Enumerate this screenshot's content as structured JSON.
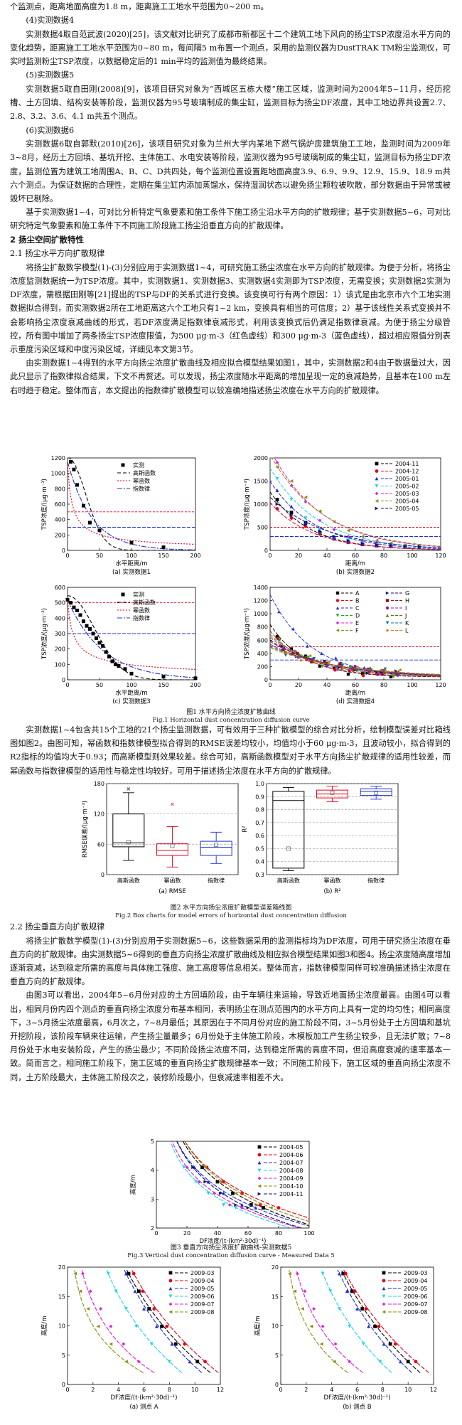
{
  "text": {
    "p0": "个监测点，距离地面高度为1.8 m，距离施工工地水平范围为0~200 m。",
    "h4": "(4)实测数据4",
    "p4": "实测数据4取自范武波(2020)[25]，该文献对比研究了成都市新都区十二个建筑工地下风向的扬尘TSP浓度沿水平方向的变化趋势，距离施工工地水平范围为0~80 m，每间隔5 m布置一个测点，采用的监测仪器为DustTRAK TM粉尘监测仪，可实时监测粉尘TSP浓度，以数据稳定后的1 min平均的监测值为最终结果。",
    "h5": "(5)实测数据5",
    "p5": "实测数据5取自田刚(2008)[9]，该项目研究对象为“西城区五栋大楼”施工区域，监测时间为2004年5~11月，经历挖槽、土方回填、结构安装等阶段，监测仪器为95号玻璃制成的集尘缸，监测目标为扬尘DF浓度，其中工地边界共设置2.7、2.8、3.2、3.6、4.1 m共五个测点。",
    "h6": "(6)实测数据6",
    "p6": "实测数据6取自郭默(2010)[26]，该项目研究对象为兰州大学内某地下燃气锅炉房建筑施工工地，监测时间为2009年3~8月，经历土方回填、基坑开挖、主体施工、水电安装等阶段，监测仪器为95号玻璃制成的集尘缸，监测目标为扬尘DF浓度，监测位置为建筑工地周围A、B、C、D共四处，每个监测位置设置距地面高度3.9、6.9、9.9、12.9、15.9、18.9 m共六个测点。为保证数据的合理性，定期在集尘缸内添加蒸馏水，保持湿润状态以避免扬尘颗粒被吹散，部分数据由于异常或被毁坏已剔除。",
    "p7": "基于实测数据1~4，可对比分析特定气象要素和施工条件下施工扬尘沿水平方向的扩散规律；基于实测数据5~6，可对比研究特定气象要素和施工条件下不同施工阶段施工扬尘沿垂直方向的扩散规律。",
    "s2": "2  扬尘空间扩散特性",
    "s21": "2.1  扬尘水平方向扩散规律",
    "p8": "将扬尘扩散数学模型(1)-(3)分别应用于实测数据1~4，可研究施工扬尘浓度在水平方向的扩散规律。为便于分析，将扬尘浓度监测数据统一为TSP浓度。其中，实测数据1、实测数据3、实测数据4实测即为TSP浓度，无需变换；实测数据2实测为DF浓度，需根据田刚等[21]提出的TSP与DF的关系式进行变换。该变换可行有两个原因：1）该式是由北京市六个工地实测数据拟合得到，而实测数据2所在工地距离这六个工地只有1~2 km，变换具有相当的可信度；2）基于该线性关系式变换并不会影响扬尘浓度衰减曲线的形式，若DF浓度满足指数律衰减形式，利用该变换式后仍满足指数律衰减。为便于扬尘分级管控，所有图中增加了两条扬尘TSP浓度限值，为500 μg·m-3（红色虚线）和300 μg·m-3（蓝色虚线），超过相应限值分别表示重度污染区域和中度污染区域，详细见本文第3节。",
    "p9": "由实测数据1~4得到的水平方向扬尘浓度扩散曲线及相应拟合模型结果如图1，其中，实测数据2和4由于数据量过大，因此只显示了指数律拟合结果，下文不再赘述。可以发现，扬尘浓度随水平距离的增加呈现一定的衰减趋势，且基本在100 m左右时趋于稳定。整体而言，本文提出的指数律扩散模型可以较准确地描述扬尘浓度在水平方向的扩散规律。",
    "p10": "实测数据1~4包含共15个工地的21个扬尘监测数据，可有效用于三种扩散模型的综合对比分析，绘制模型误差对比箱线图如图2。由图可知，幂函数和指数律模型拟合得到的RMSE误差均较小，均值均小于60 μg·m-3，且波动较小，拟合得到的R2指标的均值均大于0.93；而高斯模型则效果较差。综合可知，高斯函数模型对于水平方向扬尘扩散规律的适用性较差，而幂函数与指数律模型的适用性与稳定性均较好，可用于描述扬尘浓度在水平方向的扩散规律。",
    "s22": "2.2  扬尘垂直方向扩散规律",
    "p11": "将扬尘扩散数学模型(1)-(3)分别应用于实测数据5~6，这些数据采用的监测指标均为DF浓度，可用于研究扬尘浓度在垂直方向的扩散规律。由实测数据5~6得到的垂直方向扬尘浓度扩散曲线及相应拟合模型结果如图3和图4。扬尘浓度随高度增加逐渐衰减，达到稳定所需的高度与具体施工强度、施工高度等信息相关。整体而言，指数律模型同样可较准确描述扬尘浓度在垂直方向的扩散规律。",
    "p12": "由图3可以看出，2004年5~6月份对应的土方回填阶段，由于车辆往来运输，导致近地面扬尘浓度最高。由图4可以看出，相同月份内四个测点的垂直向扬尘浓度分布基本相同，表明扬尘在测点范围内的水平方向上具有一定的均匀性；相同高度下，3~5月扬尘浓度最高，6月次之，7~8月最低；其原因在于不同月份对应的施工阶段不同，3~5月份处于土方回填和基坑开挖阶段，该阶段车辆来往运输，产生扬尘量最多；6月份处于主体施工阶段，木模板加工产生扬尘较多，且无法扩散；7~8月份处于水电安装阶段，产生的扬尘最少；不同阶段扬尘浓度不同，达到稳定所需的高度不同，但沿高度衰减的速率基本一致。简而言之，相同施工阶段下，施工区域的垂直向扬尘扩散规律基本一致；不同施工阶段下，施工区域的垂直向扬尘浓度不同，土方阶段最大，主体施工阶段次之，装修阶段最小，但衰减速率相差不大。"
  },
  "fig1": {
    "caption_cn": "图1  水平方向扬尘浓度扩散曲线",
    "caption_en": "Fig.1 Horizontal dust concentration diffusion curve",
    "a_sub": "(a)  实测数据1",
    "b_sub": "(b)  实测数据2",
    "c_sub": "(c)  实测数据3",
    "d_sub": "(d)  实测数据4",
    "ylabel": "TSP浓度/(μg·m⁻³)",
    "xlabel_a": "水平距离/m",
    "xlabel_b": "距离/m",
    "xlabel_c": "水平距离/m",
    "xlabel_d": "距离/m",
    "legend_a": [
      "实测",
      "高斯函数",
      "幂函数",
      "指数律"
    ],
    "legend_b": [
      "2004-11",
      "2004-12",
      "2005-01",
      "2005-02",
      "2005-03",
      "2005-04",
      "2005-05"
    ],
    "legend_d": [
      "A",
      "B",
      "C",
      "D",
      "E",
      "F",
      "G",
      "H",
      "I",
      "J",
      "K",
      "L"
    ],
    "xticks_ac": [
      "0",
      "50",
      "100",
      "150",
      "200"
    ],
    "xticks_bd": [
      "0",
      "20",
      "40",
      "60",
      "80",
      "100",
      "120"
    ],
    "yticks_a": [
      "0",
      "200",
      "400",
      "600",
      "800",
      "1000",
      "1200"
    ],
    "yticks_b": [
      "0",
      "500",
      "1000",
      "1500",
      "2000"
    ],
    "yticks_c": [
      "0",
      "100",
      "200",
      "300",
      "400",
      "500",
      "600"
    ],
    "yticks_d": [
      "0",
      "200",
      "400",
      "600",
      "800",
      "1000",
      "1200",
      "1400"
    ]
  },
  "fig2": {
    "caption_cn": "图2  水平方向扬尘浓度扩散模型误差箱线图",
    "caption_en": "Fig.2 Box charts for model errors of horizontal dust concentration diffusion",
    "a_sub": "(a)  RMSE",
    "b_sub": "(b)  R²",
    "ylabel_a": "RMSE误差/(μg·m⁻³)",
    "ylabel_b": "R²",
    "cats": [
      "高斯函数",
      "幂函数",
      "指数律"
    ],
    "yticks_a": [
      "0",
      "60",
      "120",
      "180"
    ],
    "yticks_b": [
      "0.1",
      "0.2",
      "0.3",
      "0.4",
      "0.5",
      "0.6",
      "0.7",
      "0.8",
      "0.9",
      "1.0"
    ]
  },
  "fig3": {
    "caption_cn": "图3  垂直方向扬尘浓度扩散曲线-实测数据5",
    "caption_en": "Fig.3 Vertical dust concentration diffusion curve - Measured Data 5",
    "xlabel": "DF浓度/(t·(km²·30d)⁻¹)",
    "ylabel": "高度/m",
    "legend": [
      "2004-05",
      "2004-06",
      "2004-07",
      "2004-08",
      "2004-09",
      "2004-10",
      "2004-11"
    ],
    "xticks": [
      "0",
      "20",
      "40",
      "60",
      "80",
      "100"
    ],
    "yticks": [
      "2",
      "3",
      "4",
      "5"
    ]
  },
  "fig4": {
    "a_sub": "(a)  测点 A",
    "b_sub": "(b)  测点 B",
    "xlabel": "DF浓度/(t·(km²·30d)⁻¹)",
    "ylabel": "高度/m",
    "legend": [
      "2009-03",
      "2009-04",
      "2009-05",
      "2009-06",
      "2009-07",
      "2009-08"
    ],
    "xticks": [
      "0",
      "2",
      "4",
      "6",
      "8",
      "10",
      "12"
    ],
    "yticks": [
      "0",
      "5",
      "10",
      "15",
      "20"
    ]
  },
  "chart_data": [
    {
      "id": "fig1a",
      "type": "scatter",
      "title": "(a)  实测数据1",
      "xlabel": "水平距离/m",
      "ylabel": "TSP浓度/(μg·m⁻³)",
      "xlim": [
        0,
        200
      ],
      "ylim": [
        0,
        1200
      ],
      "series": [
        {
          "name": "实测",
          "x": [
            5,
            10,
            15,
            25,
            35,
            50,
            100,
            150
          ],
          "y": [
            1150,
            1050,
            850,
            580,
            360,
            260,
            100,
            40
          ]
        }
      ],
      "limits": [
        500,
        300
      ],
      "color": "#000000"
    },
    {
      "id": "fig1b",
      "type": "scatter",
      "title": "(b)  实测数据2",
      "xlabel": "距离/m",
      "ylabel": "TSP浓度/(μg·m⁻³)",
      "xlim": [
        0,
        120
      ],
      "ylim": [
        0,
        2000
      ],
      "series": [
        {
          "name": "2004-11",
          "x": [
            5,
            15,
            25,
            35,
            45,
            55,
            65,
            75,
            85,
            95,
            105
          ],
          "y": [
            1100,
            820,
            600,
            380,
            250,
            180,
            130,
            100,
            90,
            80,
            60
          ],
          "color": "#000000"
        },
        {
          "name": "2004-12",
          "x": [
            5,
            15,
            25,
            35,
            45,
            55,
            65,
            75,
            85,
            95,
            105
          ],
          "y": [
            900,
            700,
            520,
            360,
            250,
            170,
            130,
            100,
            80,
            70,
            60
          ],
          "color": "#e3001b"
        },
        {
          "name": "2005-01",
          "x": [
            5,
            15,
            25,
            35,
            45,
            55,
            65,
            75,
            85,
            95,
            105
          ],
          "y": [
            1300,
            950,
            600,
            400,
            270,
            190,
            140,
            110,
            90,
            80,
            70
          ],
          "color": "#1d2bd8"
        },
        {
          "name": "2005-02",
          "x": [
            5,
            15,
            25,
            35,
            45,
            55,
            65,
            75,
            85,
            95,
            105
          ],
          "y": [
            1550,
            1100,
            700,
            450,
            300,
            220,
            160,
            130,
            100,
            90,
            80
          ],
          "color": "#1dd5e5"
        },
        {
          "name": "2005-03",
          "x": [
            5,
            15,
            25,
            35,
            45,
            55,
            65,
            75,
            85,
            95,
            105
          ],
          "y": [
            1900,
            1400,
            1050,
            650,
            450,
            300,
            220,
            170,
            120,
            100,
            90
          ],
          "color": "#e01dd8"
        },
        {
          "name": "2005-04",
          "x": [
            5,
            15,
            25,
            35,
            45,
            55,
            65,
            75,
            85,
            95,
            105
          ],
          "y": [
            1800,
            1500,
            1150,
            850,
            620,
            430,
            300,
            220,
            160,
            120,
            100
          ],
          "color": "#8e8a10"
        },
        {
          "name": "2005-05",
          "x": [
            5,
            15,
            25,
            35,
            45,
            55,
            65,
            75,
            85,
            95,
            105
          ],
          "y": [
            1000,
            760,
            560,
            420,
            300,
            210,
            150,
            120,
            100,
            90,
            80
          ],
          "color": "#10106e"
        }
      ],
      "limits": [
        500,
        300
      ]
    },
    {
      "id": "fig1c",
      "type": "scatter",
      "title": "(c)  实测数据3",
      "xlabel": "水平距离/m",
      "ylabel": "TSP浓度/(μg·m⁻³)",
      "xlim": [
        0,
        200
      ],
      "ylim": [
        0,
        600
      ],
      "series": [
        {
          "name": "实测",
          "x": [
            0,
            5,
            10,
            15,
            20,
            25,
            30,
            35,
            40,
            45,
            50,
            55,
            60,
            65,
            70,
            75,
            80,
            90,
            100,
            150,
            200
          ],
          "y": [
            520,
            500,
            470,
            450,
            420,
            380,
            350,
            330,
            300,
            270,
            240,
            220,
            180,
            150,
            120,
            100,
            90,
            70,
            40,
            20,
            10
          ]
        }
      ],
      "limits": [
        500,
        300
      ],
      "color": "#000000"
    },
    {
      "id": "fig1d",
      "type": "scatter",
      "title": "(d)  实测数据4",
      "xlabel": "距离/m",
      "ylabel": "TSP浓度/(μg·m⁻³)",
      "xlim": [
        0,
        80
      ],
      "ylim": [
        0,
        1400
      ],
      "series": [
        {
          "name": "A",
          "y0": 800,
          "color": "#000000"
        },
        {
          "name": "B",
          "y0": 700,
          "color": "#e3001b"
        },
        {
          "name": "C",
          "y0": 1250,
          "color": "#1d2bd8"
        },
        {
          "name": "D",
          "y0": 650,
          "color": "#12a812"
        },
        {
          "name": "E",
          "y0": 600,
          "color": "#e01dd8"
        },
        {
          "name": "F",
          "y0": 620,
          "color": "#8e8a10"
        },
        {
          "name": "G",
          "y0": 560,
          "color": "#10106e"
        },
        {
          "name": "H",
          "y0": 540,
          "color": "#8a1515"
        },
        {
          "name": "I",
          "y0": 500,
          "color": "#8c1aa8"
        },
        {
          "name": "J",
          "y0": 480,
          "color": "#5a6e10"
        },
        {
          "name": "K",
          "y0": 460,
          "color": "#0f6b8a"
        },
        {
          "name": "L",
          "y0": 440,
          "color": "#e07a10"
        }
      ],
      "limits": [
        500,
        300
      ]
    },
    {
      "id": "fig2a",
      "type": "box",
      "title": "(a)  RMSE",
      "ylabel": "RMSE误差/(μg·m⁻³)",
      "ylim": [
        0,
        180
      ],
      "categories": [
        "高斯函数",
        "幂函数",
        "指数律"
      ],
      "boxes": [
        {
          "min": 28,
          "q1": 55,
          "median": 63,
          "q3": 120,
          "max": 162,
          "mean": 64,
          "outlier": 170,
          "color": "#000000"
        },
        {
          "min": 15,
          "q1": 38,
          "median": 48,
          "q3": 61,
          "max": 95,
          "mean": 57,
          "outlier": 140,
          "color": "#e3001b"
        },
        {
          "min": 22,
          "q1": 38,
          "median": 54,
          "q3": 66,
          "max": 84,
          "mean": 59,
          "outlier": null,
          "color": "#1d2bd8"
        }
      ]
    },
    {
      "id": "fig2b",
      "type": "box",
      "title": "(b)  R²",
      "ylabel": "R²",
      "ylim": [
        0.3,
        1.0
      ],
      "categories": [
        "高斯函数",
        "幂函数",
        "指数律"
      ],
      "boxes": [
        {
          "min": 0.33,
          "q1": 0.35,
          "median": 0.87,
          "q3": 0.94,
          "max": 0.97,
          "mean": 0.5,
          "color": "#000000"
        },
        {
          "min": 0.86,
          "q1": 0.89,
          "median": 0.92,
          "q3": 0.95,
          "max": 0.98,
          "mean": 0.93,
          "color": "#e3001b"
        },
        {
          "min": 0.88,
          "q1": 0.91,
          "median": 0.94,
          "q3": 0.96,
          "max": 0.98,
          "mean": 0.93,
          "color": "#1d2bd8"
        }
      ]
    },
    {
      "id": "fig3",
      "type": "line",
      "title": "图3  垂直方向扬尘浓度扩散曲线-实测数据5",
      "xlabel": "DF浓度/(t·(km²·30d)⁻¹)",
      "ylabel": "高度/m",
      "xlim": [
        0,
        100
      ],
      "ylim": [
        2,
        5
      ],
      "y": [
        2.7,
        2.8,
        3.2,
        3.6,
        4.1
      ],
      "series": [
        {
          "name": "2004-05",
          "x": [
            70,
            62,
            50,
            40,
            30
          ],
          "color": "#000000"
        },
        {
          "name": "2004-06",
          "x": [
            80,
            68,
            56,
            44,
            33
          ],
          "color": "#e3001b"
        },
        {
          "name": "2004-07",
          "x": [
            65,
            56,
            44,
            34,
            25
          ],
          "color": "#1d2bd8"
        },
        {
          "name": "2004-08",
          "x": [
            52,
            44,
            34,
            26,
            18
          ],
          "color": "#1dd5e5"
        },
        {
          "name": "2004-09",
          "x": [
            56,
            48,
            38,
            28,
            20
          ],
          "color": "#e01dd8"
        },
        {
          "name": "2004-10",
          "x": [
            75,
            65,
            52,
            42,
            32
          ],
          "color": "#8e8a10"
        },
        {
          "name": "2004-11",
          "x": [
            60,
            52,
            42,
            32,
            24
          ],
          "color": "#10106e"
        }
      ]
    },
    {
      "id": "fig4a",
      "type": "line",
      "title": "(a)  测点 A",
      "xlabel": "DF浓度/(t·(km²·30d)⁻¹)",
      "ylabel": "高度/m",
      "xlim": [
        0,
        12
      ],
      "ylim": [
        0,
        20
      ],
      "y": [
        3.9,
        6.9,
        9.9,
        12.9,
        15.9,
        18.9
      ],
      "series": [
        {
          "name": "2009-03",
          "x": [
            10.2,
            8.5,
            7.4,
            6.4,
            5.6,
            4.8
          ],
          "color": "#000000"
        },
        {
          "name": "2009-04",
          "x": [
            10.8,
            9.2,
            7.8,
            6.8,
            5.9,
            5.2
          ],
          "color": "#e3001b"
        },
        {
          "name": "2009-05",
          "x": [
            9.6,
            8.2,
            7.0,
            6.0,
            5.3,
            4.6
          ],
          "color": "#1d2bd8"
        },
        {
          "name": "2009-06",
          "x": [
            8.0,
            6.6,
            5.4,
            4.6,
            3.8,
            3.2
          ],
          "color": "#1dd5e5"
        },
        {
          "name": "2009-07",
          "x": [
            5.6,
            4.4,
            3.4,
            2.6,
            1.8,
            1.2
          ],
          "color": "#e01dd8"
        },
        {
          "name": "2009-08",
          "x": [
            4.6,
            3.4,
            2.4,
            1.6,
            1.0,
            0.6
          ],
          "color": "#8e8a10"
        }
      ]
    },
    {
      "id": "fig4b",
      "type": "line",
      "title": "(b)  测点 B",
      "xlabel": "DF浓度/(t·(km²·30d)⁻¹)",
      "ylabel": "高度/m",
      "xlim": [
        0,
        12
      ],
      "ylim": [
        0,
        20
      ],
      "y": [
        3.9,
        6.9,
        9.9,
        12.9,
        15.9,
        18.9
      ],
      "series": [
        {
          "name": "2009-03",
          "x": [
            10.0,
            8.6,
            7.4,
            6.4,
            5.6,
            4.9
          ],
          "color": "#000000"
        },
        {
          "name": "2009-04",
          "x": [
            10.6,
            9.0,
            7.7,
            6.7,
            5.8,
            5.1
          ],
          "color": "#e3001b"
        },
        {
          "name": "2009-05",
          "x": [
            9.4,
            8.1,
            6.9,
            6.0,
            5.2,
            4.6
          ],
          "color": "#1d2bd8"
        },
        {
          "name": "2009-06",
          "x": [
            7.8,
            6.5,
            5.4,
            4.6,
            3.9,
            3.3
          ],
          "color": "#1dd5e5"
        },
        {
          "name": "2009-07",
          "x": [
            5.4,
            4.3,
            3.3,
            2.6,
            1.9,
            1.3
          ],
          "color": "#e01dd8"
        },
        {
          "name": "2009-08",
          "x": [
            4.2,
            3.2,
            2.4,
            1.7,
            1.1,
            0.7
          ],
          "color": "#8e8a10"
        }
      ]
    }
  ]
}
